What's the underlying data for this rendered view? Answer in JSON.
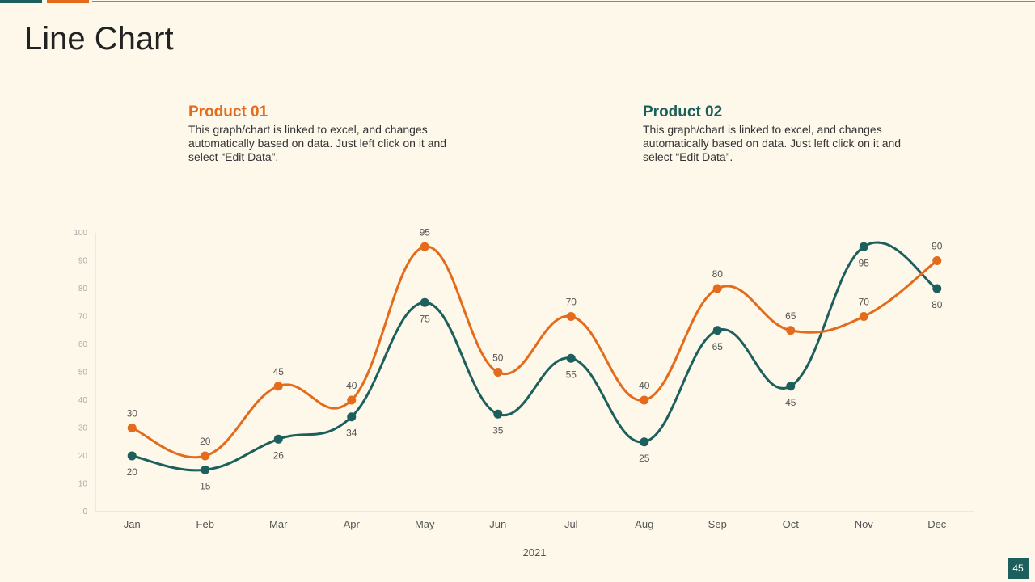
{
  "title": "Line Chart",
  "page_number": "45",
  "colors": {
    "product1": "#e36b1b",
    "product2": "#1c5f5c"
  },
  "legend": [
    {
      "name": "Product 01",
      "description": "This graph/chart is linked to excel, and changes automatically based on data. Just left click on it and select “Edit Data”."
    },
    {
      "name": "Product 02",
      "description": "This graph/chart is linked to excel, and changes automatically based on data. Just left click on it and select “Edit Data”."
    }
  ],
  "chart_data": {
    "type": "line",
    "title": "",
    "xlabel": "2021",
    "ylabel": "",
    "ylim": [
      0,
      100
    ],
    "yticks": [
      0,
      10,
      20,
      30,
      40,
      50,
      60,
      70,
      80,
      90,
      100
    ],
    "categories": [
      "Jan",
      "Feb",
      "Mar",
      "Apr",
      "May",
      "Jun",
      "Jul",
      "Aug",
      "Sep",
      "Oct",
      "Nov",
      "Dec"
    ],
    "series": [
      {
        "name": "Product 01",
        "color": "#e36b1b",
        "values": [
          30,
          20,
          45,
          40,
          95,
          50,
          70,
          40,
          80,
          65,
          70,
          90
        ],
        "label_position": "above"
      },
      {
        "name": "Product 02",
        "color": "#1c5f5c",
        "values": [
          20,
          15,
          26,
          34,
          75,
          35,
          55,
          25,
          65,
          45,
          95,
          80
        ],
        "label_position": "below"
      }
    ]
  }
}
